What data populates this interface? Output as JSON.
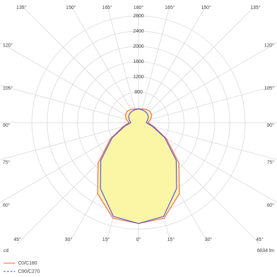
{
  "chart_data": {
    "type": "polar",
    "unit": "cd",
    "flux": "6834 lm",
    "rlim": [
      0,
      2800
    ],
    "rticks": [
      800,
      1200,
      1600,
      2000,
      2400,
      2800
    ],
    "angle_ticks": [
      {
        "value": -135,
        "label": "135°"
      },
      {
        "value": -150,
        "label": "150°"
      },
      {
        "value": -165,
        "label": "165°"
      },
      {
        "value": 180,
        "label": "180°"
      },
      {
        "value": 165,
        "label": "165°"
      },
      {
        "value": 150,
        "label": "150°"
      },
      {
        "value": 135,
        "label": "135°"
      },
      {
        "value": -120,
        "label": "120°"
      },
      {
        "value": -105,
        "label": "105°"
      },
      {
        "value": -90,
        "label": "90°"
      },
      {
        "value": -75,
        "label": "75°"
      },
      {
        "value": -60,
        "label": "60°"
      },
      {
        "value": 120,
        "label": "120°"
      },
      {
        "value": 105,
        "label": "105°"
      },
      {
        "value": 90,
        "label": "90°"
      },
      {
        "value": 75,
        "label": "75°"
      },
      {
        "value": 60,
        "label": "60°"
      },
      {
        "value": -45,
        "label": "45°"
      },
      {
        "value": -30,
        "label": "30°"
      },
      {
        "value": -15,
        "label": "15°"
      },
      {
        "value": 0,
        "label": "0°"
      },
      {
        "value": 15,
        "label": "15°"
      },
      {
        "value": 30,
        "label": "30°"
      },
      {
        "value": 45,
        "label": "45°"
      }
    ],
    "angles": [
      0,
      15,
      30,
      45,
      60,
      75,
      90,
      105,
      120,
      135,
      150,
      165,
      180
    ],
    "fill": "#fbf5a6",
    "series": [
      {
        "name": "C0/C180",
        "color": "#f05a4a",
        "dashed": false,
        "values": [
          2650,
          2600,
          2150,
          1500,
          850,
          420,
          250,
          330,
          400,
          420,
          400,
          370,
          360
        ]
      },
      {
        "name": "C90/C270",
        "color": "#4a4ae0",
        "dashed": true,
        "values": [
          2650,
          2550,
          2000,
          1400,
          800,
          380,
          200,
          250,
          300,
          330,
          340,
          350,
          360
        ]
      }
    ]
  }
}
